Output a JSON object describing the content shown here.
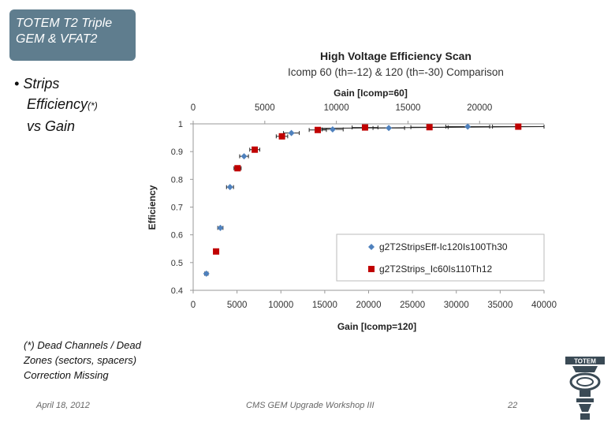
{
  "slide": {
    "title": "TOTEM T2 Triple GEM & VFAT2",
    "bullet_part1": "Strips",
    "bullet_part2": "Efficiency",
    "bullet_sup": "(*)",
    "bullet_part3": "vs Gain",
    "footnote": "(*) Dead Channels / Dead Zones (sectors, spacers) Correction Missing",
    "footer_date": "April 18, 2012",
    "footer_event": "CMS GEM Upgrade Workshop III",
    "page_number": "22",
    "logo_text": "TOTEM"
  },
  "chart_data": {
    "type": "scatter",
    "title": "High Voltage Efficiency Scan",
    "subtitle": "Icomp 60 (th=-12) & 120 (th=-30) Comparison",
    "xlabel": "Gain [Icomp=120]",
    "x2label": "Gain [Icomp=60]",
    "ylabel": "Efficiency",
    "xlim": [
      0,
      40000
    ],
    "x2lim": [
      0,
      24500
    ],
    "ylim": [
      0.4,
      1.0
    ],
    "xticks": [
      "0",
      "5000",
      "10000",
      "15000",
      "20000",
      "25000",
      "30000",
      "35000",
      "40000"
    ],
    "x2ticks": [
      "0",
      "5000",
      "10000",
      "15000",
      "20000"
    ],
    "yticks": [
      "0.4",
      "0.5",
      "0.6",
      "0.7",
      "0.8",
      "0.9",
      "1"
    ],
    "legend_position": "bottom-right",
    "series": [
      {
        "name": "g2T2StripsEff-Ic120Is100Th30",
        "color": "#4f81bd",
        "marker": "diamond",
        "axis": "bottom",
        "points": [
          {
            "x": 1500,
            "y": 0.46,
            "xerr": 200
          },
          {
            "x": 3100,
            "y": 0.625,
            "xerr": 300
          },
          {
            "x": 4200,
            "y": 0.772,
            "xerr": 400
          },
          {
            "x": 5800,
            "y": 0.883,
            "xerr": 500
          },
          {
            "x": 11200,
            "y": 0.967,
            "xerr": 900
          },
          {
            "x": 15900,
            "y": 0.98,
            "xerr": 1200
          },
          {
            "x": 22300,
            "y": 0.985,
            "xerr": 1800
          },
          {
            "x": 31300,
            "y": 0.99,
            "xerr": 2500
          }
        ]
      },
      {
        "name": "g2T2Strips_Ic60Is110Th12",
        "color": "#c00000",
        "marker": "square",
        "axis": "top",
        "points": [
          {
            "x": 1600,
            "y": 0.54,
            "xerr": 100
          },
          {
            "x": 3100,
            "y": 0.84,
            "xerr": 250
          },
          {
            "x": 4300,
            "y": 0.907,
            "xerr": 350
          },
          {
            "x": 6200,
            "y": 0.955,
            "xerr": 400
          },
          {
            "x": 8700,
            "y": 0.978,
            "xerr": 600
          },
          {
            "x": 12000,
            "y": 0.987,
            "xerr": 900
          },
          {
            "x": 16500,
            "y": 0.988,
            "xerr": 1300
          },
          {
            "x": 22700,
            "y": 0.99,
            "xerr": 1800
          }
        ]
      }
    ]
  }
}
